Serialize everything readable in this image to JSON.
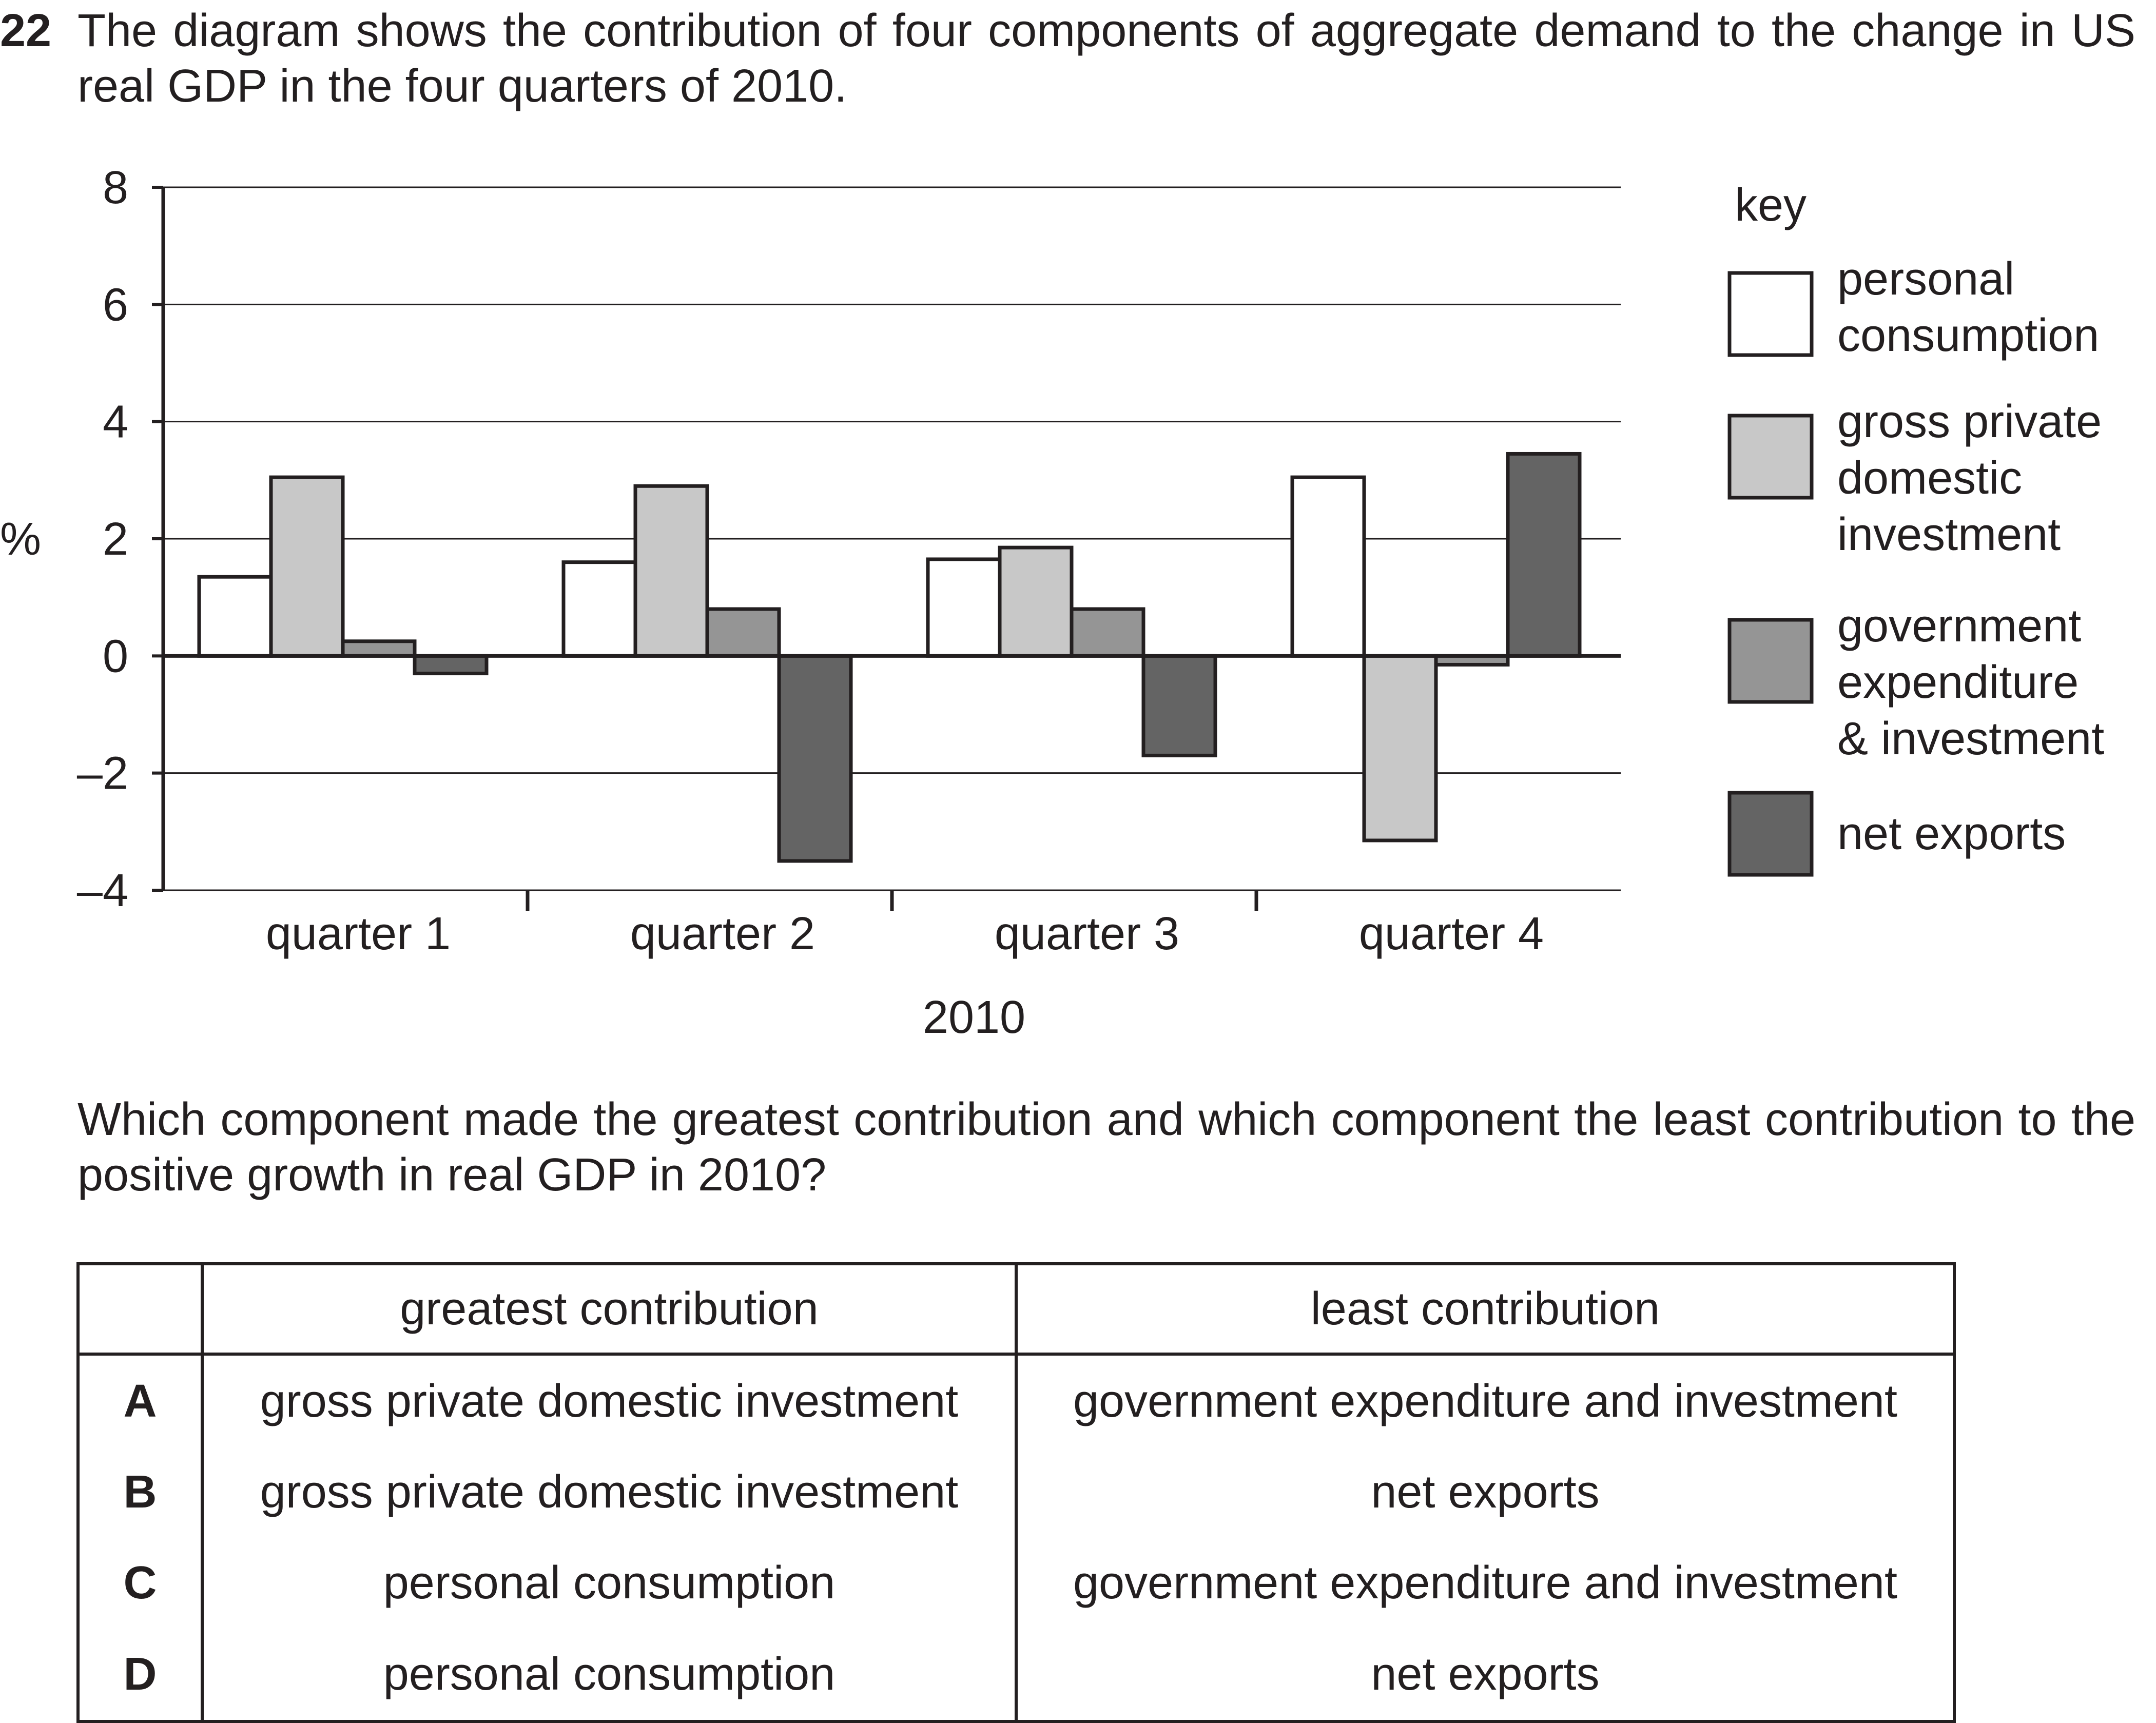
{
  "question": {
    "number": "22",
    "stem": "The diagram shows the contribution of four components of aggregate demand to the change in US real GDP in the four quarters of 2010.",
    "prompt": "Which component made the greatest contribution and which component the least contribution to the positive growth in real GDP in 2010?"
  },
  "chart_data": {
    "type": "bar",
    "ylabel": "%",
    "xlabel": "2010",
    "ylim": [
      -4,
      8
    ],
    "yticks": [
      8,
      6,
      4,
      2,
      0,
      -2,
      -4
    ],
    "ytick_labels": [
      "8",
      "6",
      "4",
      "2",
      "0",
      "–2",
      "–4"
    ],
    "grid": true,
    "legend_title": "key",
    "legend_position": "right",
    "categories": [
      "quarter 1",
      "quarter 2",
      "quarter 3",
      "quarter 4"
    ],
    "series": [
      {
        "name": "personal consumption",
        "legend_lines": [
          "personal",
          "consumption"
        ],
        "color": "#ffffff",
        "values": [
          1.35,
          1.6,
          1.65,
          3.05
        ]
      },
      {
        "name": "gross private domestic investment",
        "legend_lines": [
          "gross private",
          "domestic",
          "investment"
        ],
        "color": "#c8c8c8",
        "values": [
          3.05,
          2.9,
          1.85,
          -3.15
        ]
      },
      {
        "name": "government expenditure & investment",
        "legend_lines": [
          "government",
          "expenditure",
          "& investment"
        ],
        "color": "#959595",
        "values": [
          0.25,
          0.8,
          0.8,
          -0.15
        ]
      },
      {
        "name": "net exports",
        "legend_lines": [
          "net exports"
        ],
        "color": "#646464",
        "values": [
          -0.3,
          -3.5,
          -1.7,
          3.45
        ]
      }
    ]
  },
  "table": {
    "headers": [
      "",
      "greatest contribution",
      "least contribution"
    ],
    "rows": [
      {
        "letter": "A",
        "greatest": "gross private domestic investment",
        "least": "government expenditure and investment"
      },
      {
        "letter": "B",
        "greatest": "gross private domestic investment",
        "least": "net exports"
      },
      {
        "letter": "C",
        "greatest": "personal consumption",
        "least": "government expenditure and investment"
      },
      {
        "letter": "D",
        "greatest": "personal consumption",
        "least": "net exports"
      }
    ]
  }
}
